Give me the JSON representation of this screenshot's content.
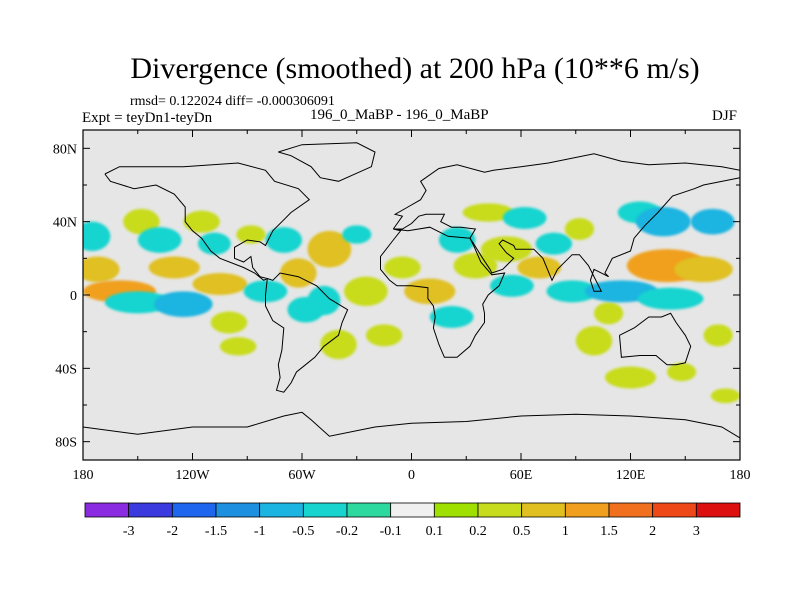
{
  "title": "Divergence (smoothed) at 200 hPa (10**6 m/s)",
  "stats_line": "rmsd= 0.122024 diff= -0.000306091",
  "expt_line": "Expt = teyDn1-teyDn",
  "runs_line": "196_0_MaBP - 196_0_MaBP",
  "season": "DJF",
  "colors": {
    "background_field": "#e6e6e6",
    "scale": [
      "#8a2be2",
      "#3a3adf",
      "#1e66ee",
      "#1e90e0",
      "#1cb4e0",
      "#18d4cf",
      "#2ed9a0",
      "#f0f0f0",
      "#a0e000",
      "#c8dc1e",
      "#e0c020",
      "#f0a01e",
      "#f07020",
      "#ee4818",
      "#dd1010"
    ]
  },
  "chart_data": {
    "type": "heatmap",
    "title": "Divergence (smoothed) at 200 hPa (10**6 m/s)",
    "projection": "cylindrical equidistant",
    "x_ticks": [
      "180",
      "120W",
      "60W",
      "0",
      "60E",
      "120E",
      "180"
    ],
    "y_ticks": [
      "80N",
      "40N",
      "0",
      "40S",
      "80S"
    ],
    "xlim": [
      -180,
      180
    ],
    "ylim": [
      -90,
      90
    ],
    "colorbar": {
      "labels": [
        "-3",
        "-2",
        "-1.5",
        "-1",
        "-0.5",
        "-0.2",
        "-0.1",
        "0.1",
        "0.2",
        "0.5",
        "1",
        "1.5",
        "2",
        "3"
      ],
      "levels": [
        -3,
        -2,
        -1.5,
        -1,
        -0.5,
        -0.2,
        -0.1,
        0.1,
        0.2,
        0.5,
        1,
        1.5,
        2,
        3
      ]
    },
    "blobs": [
      {
        "lon": -175,
        "lat": 32,
        "rlon": 10,
        "rlat": 8,
        "value": -0.3
      },
      {
        "lon": -172,
        "lat": 14,
        "rlon": 12,
        "rlat": 7,
        "value": 0.6
      },
      {
        "lon": -160,
        "lat": 2,
        "rlon": 20,
        "rlat": 6,
        "value": 1.1
      },
      {
        "lon": -150,
        "lat": -4,
        "rlon": 18,
        "rlat": 6,
        "value": -0.3
      },
      {
        "lon": -148,
        "lat": 40,
        "rlon": 10,
        "rlat": 7,
        "value": 0.3
      },
      {
        "lon": -138,
        "lat": 30,
        "rlon": 12,
        "rlat": 7,
        "value": -0.3
      },
      {
        "lon": -130,
        "lat": 15,
        "rlon": 14,
        "rlat": 6,
        "value": 0.6
      },
      {
        "lon": -125,
        "lat": -5,
        "rlon": 16,
        "rlat": 7,
        "value": -0.5
      },
      {
        "lon": -115,
        "lat": 40,
        "rlon": 10,
        "rlat": 6,
        "value": 0.3
      },
      {
        "lon": -108,
        "lat": 28,
        "rlon": 9,
        "rlat": 6,
        "value": -0.3
      },
      {
        "lon": -105,
        "lat": 6,
        "rlon": 15,
        "rlat": 6,
        "value": 0.6
      },
      {
        "lon": -100,
        "lat": -15,
        "rlon": 10,
        "rlat": 6,
        "value": 0.3
      },
      {
        "lon": -95,
        "lat": -28,
        "rlon": 10,
        "rlat": 5,
        "value": 0.3
      },
      {
        "lon": -88,
        "lat": 33,
        "rlon": 8,
        "rlat": 5,
        "value": 0.3
      },
      {
        "lon": -80,
        "lat": 2,
        "rlon": 12,
        "rlat": 6,
        "value": -0.3
      },
      {
        "lon": -70,
        "lat": 30,
        "rlon": 10,
        "rlat": 7,
        "value": -0.3
      },
      {
        "lon": -62,
        "lat": 12,
        "rlon": 10,
        "rlat": 8,
        "value": 0.6
      },
      {
        "lon": -58,
        "lat": -8,
        "rlon": 10,
        "rlat": 7,
        "value": -0.3
      },
      {
        "lon": -45,
        "lat": 25,
        "rlon": 12,
        "rlat": 10,
        "value": 0.6
      },
      {
        "lon": -48,
        "lat": -3,
        "rlon": 9,
        "rlat": 8,
        "value": -0.3
      },
      {
        "lon": -40,
        "lat": -27,
        "rlon": 10,
        "rlat": 8,
        "value": 0.3
      },
      {
        "lon": -30,
        "lat": 33,
        "rlon": 8,
        "rlat": 5,
        "value": -0.3
      },
      {
        "lon": -25,
        "lat": 2,
        "rlon": 12,
        "rlat": 8,
        "value": 0.4
      },
      {
        "lon": -15,
        "lat": -22,
        "rlon": 10,
        "rlat": 6,
        "value": 0.3
      },
      {
        "lon": -5,
        "lat": 15,
        "rlon": 10,
        "rlat": 6,
        "value": 0.3
      },
      {
        "lon": 10,
        "lat": 2,
        "rlon": 14,
        "rlat": 7,
        "value": 0.8
      },
      {
        "lon": 22,
        "lat": -12,
        "rlon": 12,
        "rlat": 6,
        "value": -0.3
      },
      {
        "lon": 25,
        "lat": 30,
        "rlon": 10,
        "rlat": 7,
        "value": -0.3
      },
      {
        "lon": 35,
        "lat": 16,
        "rlon": 12,
        "rlat": 7,
        "value": 0.3
      },
      {
        "lon": 42,
        "lat": 45,
        "rlon": 14,
        "rlat": 5,
        "value": 0.3
      },
      {
        "lon": 52,
        "lat": 25,
        "rlon": 14,
        "rlat": 7,
        "value": 0.3
      },
      {
        "lon": 55,
        "lat": 5,
        "rlon": 12,
        "rlat": 6,
        "value": -0.3
      },
      {
        "lon": 62,
        "lat": 42,
        "rlon": 12,
        "rlat": 6,
        "value": -0.3
      },
      {
        "lon": 70,
        "lat": 15,
        "rlon": 12,
        "rlat": 6,
        "value": 0.6
      },
      {
        "lon": 78,
        "lat": 28,
        "rlon": 10,
        "rlat": 6,
        "value": -0.3
      },
      {
        "lon": 88,
        "lat": 2,
        "rlon": 14,
        "rlat": 6,
        "value": -0.3
      },
      {
        "lon": 92,
        "lat": 36,
        "rlon": 8,
        "rlat": 6,
        "value": 0.3
      },
      {
        "lon": 100,
        "lat": -25,
        "rlon": 10,
        "rlat": 8,
        "value": 0.3
      },
      {
        "lon": 108,
        "lat": -10,
        "rlon": 8,
        "rlat": 6,
        "value": 0.3
      },
      {
        "lon": 115,
        "lat": 2,
        "rlon": 20,
        "rlat": 6,
        "value": -0.5
      },
      {
        "lon": 120,
        "lat": -45,
        "rlon": 14,
        "rlat": 6,
        "value": 0.3
      },
      {
        "lon": 125,
        "lat": 45,
        "rlon": 12,
        "rlat": 6,
        "value": -0.3
      },
      {
        "lon": 138,
        "lat": 40,
        "rlon": 15,
        "rlat": 8,
        "value": -0.5
      },
      {
        "lon": 140,
        "lat": 16,
        "rlon": 22,
        "rlat": 9,
        "value": 1.2
      },
      {
        "lon": 142,
        "lat": -2,
        "rlon": 18,
        "rlat": 6,
        "value": -0.3
      },
      {
        "lon": 148,
        "lat": -42,
        "rlon": 8,
        "rlat": 5,
        "value": 0.3
      },
      {
        "lon": 160,
        "lat": 14,
        "rlon": 16,
        "rlat": 7,
        "value": 0.8
      },
      {
        "lon": 165,
        "lat": 40,
        "rlon": 12,
        "rlat": 7,
        "value": -0.5
      },
      {
        "lon": 168,
        "lat": -22,
        "rlon": 8,
        "rlat": 6,
        "value": 0.3
      },
      {
        "lon": 172,
        "lat": -55,
        "rlon": 8,
        "rlat": 4,
        "value": 0.3
      }
    ]
  }
}
